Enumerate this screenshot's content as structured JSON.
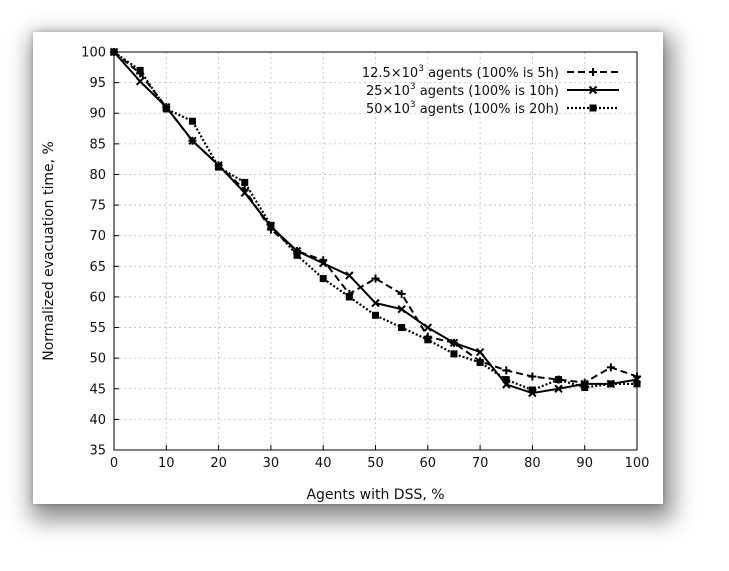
{
  "chart_data": {
    "type": "line",
    "xlabel": "Agents with DSS, %",
    "ylabel": "Normalized evacuation time, %",
    "xlim": [
      0,
      100
    ],
    "ylim": [
      35,
      100
    ],
    "xticks": [
      0,
      10,
      20,
      30,
      40,
      50,
      60,
      70,
      80,
      90,
      100
    ],
    "yticks": [
      35,
      40,
      45,
      50,
      55,
      60,
      65,
      70,
      75,
      80,
      85,
      90,
      95,
      100
    ],
    "grid": true,
    "legend_position": "top-right",
    "x": [
      0,
      5,
      10,
      15,
      20,
      25,
      30,
      35,
      40,
      45,
      50,
      55,
      60,
      65,
      70,
      75,
      80,
      85,
      90,
      95,
      100
    ],
    "series": [
      {
        "name_base": "12.5×10",
        "name_exp": "3",
        "name_rest": " agents (100% is 5h)",
        "style": "dashed",
        "marker": "plus",
        "values": [
          100,
          96.5,
          91,
          85.5,
          81.5,
          77.5,
          71,
          67.5,
          66,
          60.5,
          63,
          60.5,
          53.5,
          52.5,
          49.5,
          48,
          47,
          46.5,
          46,
          48.5,
          47
        ]
      },
      {
        "name_base": "25×10",
        "name_exp": "3",
        "name_rest": " agents (100% is 10h)",
        "style": "solid",
        "marker": "cross",
        "values": [
          100,
          95.2,
          91,
          85.5,
          81.5,
          77,
          71.5,
          67.5,
          65.5,
          63.5,
          59,
          58,
          55,
          52.5,
          51,
          45.7,
          44.3,
          45,
          45.8,
          45.8,
          46.5
        ]
      },
      {
        "name_base": "50×10",
        "name_exp": "3",
        "name_rest": " agents (100% is 20h)",
        "style": "dotted",
        "marker": "square",
        "values": [
          100,
          97,
          90.7,
          88.7,
          81.2,
          78.7,
          71.7,
          66.8,
          63,
          60,
          57,
          55,
          53,
          50.7,
          49.3,
          46.5,
          44.8,
          46.5,
          45.2,
          45.8,
          45.8
        ]
      }
    ]
  }
}
